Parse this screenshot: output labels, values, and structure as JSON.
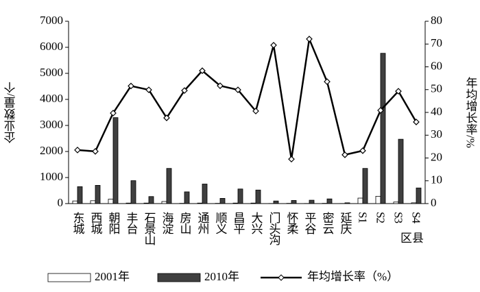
{
  "chart_data": {
    "type": "bar-line",
    "categories": [
      "东城",
      "西城",
      "朝阳",
      "丰台",
      "石景山",
      "海淀",
      "房山",
      "通州",
      "顺义",
      "昌平",
      "大兴",
      "门头沟",
      "怀柔",
      "平谷",
      "密云",
      "延庆",
      "S1",
      "S2",
      "S3",
      "S4"
    ],
    "x_label": "区县",
    "y_label": "企业数量/个",
    "y2_label": "年均增长率/%",
    "ylim": [
      0,
      7000
    ],
    "yticks": [
      0,
      1000,
      2000,
      3000,
      4000,
      5000,
      6000,
      7000
    ],
    "y2lim": [
      0,
      80
    ],
    "y2ticks": [
      0,
      10,
      20,
      30,
      40,
      50,
      60,
      70,
      80
    ],
    "series": [
      {
        "name": "2001年",
        "kind": "bar",
        "color": "#ffffff",
        "values": [
          100,
          110,
          170,
          20,
          20,
          80,
          10,
          20,
          10,
          20,
          20,
          5,
          10,
          5,
          10,
          5,
          210,
          280,
          60,
          30
        ]
      },
      {
        "name": "2010年",
        "kind": "bar",
        "color": "#404040",
        "values": [
          650,
          700,
          3300,
          880,
          270,
          1350,
          450,
          750,
          200,
          560,
          520,
          100,
          120,
          130,
          180,
          30,
          1350,
          5770,
          2470,
          600
        ]
      },
      {
        "name": "年均增长率（%）",
        "kind": "line",
        "axis": "y2",
        "color": "#000000",
        "values": [
          23.5,
          22.9,
          39.7,
          51.6,
          49.9,
          37.6,
          49.6,
          58.3,
          51.7,
          49.9,
          40.6,
          69.5,
          19.5,
          72.2,
          53.5,
          21.4,
          23.2,
          40.9,
          49.3,
          35.8
        ]
      }
    ]
  }
}
